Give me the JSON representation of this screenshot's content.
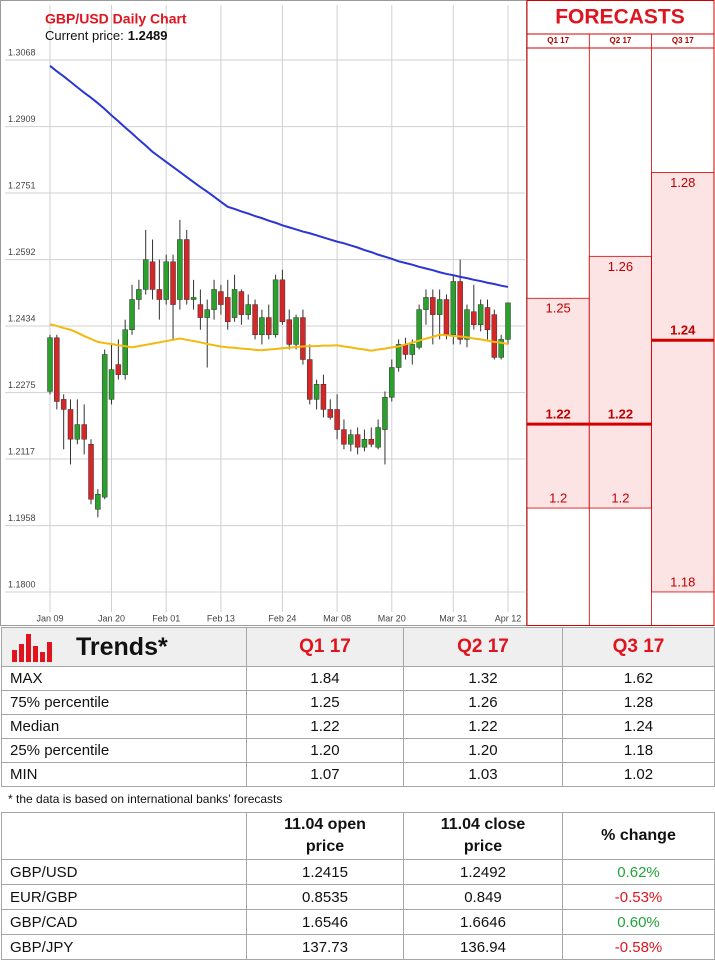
{
  "chart_data": [
    {
      "type": "candlestick",
      "title": "GBP/USD Daily Chart",
      "current_price_label": "Current price:",
      "current_price": 1.2489,
      "categories": [
        "Jan 09",
        null,
        null,
        null,
        null,
        null,
        null,
        null,
        null,
        "Jan 20",
        null,
        null,
        null,
        null,
        null,
        null,
        null,
        "Feb 01",
        null,
        null,
        null,
        null,
        null,
        null,
        null,
        "Feb 13",
        null,
        null,
        null,
        null,
        null,
        null,
        null,
        null,
        "Feb 24",
        null,
        null,
        null,
        null,
        null,
        null,
        null,
        "Mar 08",
        null,
        null,
        null,
        null,
        null,
        null,
        null,
        "Mar 20",
        null,
        null,
        null,
        null,
        null,
        null,
        null,
        null,
        "Mar 31",
        null,
        null,
        null,
        null,
        null,
        null,
        null,
        "Apr 12"
      ],
      "open": [
        1.2278,
        1.2406,
        1.2259,
        1.2235,
        1.2164,
        1.2199,
        1.2152,
        1.1997,
        1.2026,
        1.2259,
        1.2342,
        1.2318,
        1.2425,
        1.2497,
        1.2521,
        1.2587,
        1.2521,
        1.2497,
        1.2587,
        1.2497,
        1.264,
        1.2497,
        1.2485,
        1.2454,
        1.2473,
        1.2516,
        1.2502,
        1.2454,
        1.2516,
        1.2461,
        1.2485,
        1.2413,
        1.2454,
        1.2413,
        1.2544,
        1.2449,
        1.239,
        1.2454,
        1.2354,
        1.2259,
        1.2295,
        1.2235,
        1.2235,
        1.2187,
        1.2152,
        1.2175,
        1.2145,
        1.2164,
        1.2145,
        1.2187,
        1.2264,
        1.2335,
        1.239,
        1.2366,
        1.2383,
        1.2473,
        1.2502,
        1.2461,
        1.2497,
        1.2413,
        1.254,
        1.2402,
        1.2468,
        1.2437,
        1.2478,
        1.2461,
        1.2359,
        1.2402
      ],
      "high": [
        1.2413,
        1.2413,
        1.2271,
        1.2259,
        1.2259,
        1.2247,
        1.2164,
        1.2045,
        1.2378,
        1.239,
        1.2402,
        1.2449,
        1.2532,
        1.2544,
        1.2663,
        1.264,
        1.2592,
        1.2604,
        1.2604,
        1.2687,
        1.2663,
        1.2544,
        1.2521,
        1.2497,
        1.2544,
        1.2532,
        1.2544,
        1.2556,
        1.2521,
        1.2509,
        1.2497,
        1.2473,
        1.2485,
        1.2556,
        1.2568,
        1.2473,
        1.2461,
        1.2473,
        1.239,
        1.2306,
        1.2318,
        1.2259,
        1.2271,
        1.2211,
        1.2187,
        1.2192,
        1.2187,
        1.2192,
        1.2211,
        1.2278,
        1.2354,
        1.2402,
        1.2406,
        1.2402,
        1.2485,
        1.2521,
        1.2521,
        1.2521,
        1.2509,
        1.2556,
        1.2592,
        1.2485,
        1.2532,
        1.2497,
        1.2497,
        1.2473,
        1.2413,
        1.249
      ],
      "low": [
        1.2271,
        1.2235,
        1.214,
        1.2104,
        1.2152,
        1.2128,
        1.2009,
        1.1978,
        1.2021,
        1.2247,
        1.2306,
        1.2306,
        1.2413,
        1.2473,
        1.2509,
        1.2497,
        1.2449,
        1.2485,
        1.2402,
        1.2473,
        1.2485,
        1.2473,
        1.2425,
        1.2335,
        1.2449,
        1.2461,
        1.2425,
        1.2444,
        1.2437,
        1.2449,
        1.2402,
        1.239,
        1.2402,
        1.2406,
        1.2437,
        1.2378,
        1.2378,
        1.2342,
        1.2247,
        1.2235,
        1.2216,
        1.2211,
        1.2164,
        1.214,
        1.2135,
        1.2128,
        1.2135,
        1.2145,
        1.214,
        1.2104,
        1.2254,
        1.2325,
        1.2354,
        1.2342,
        1.2378,
        1.2437,
        1.239,
        1.2402,
        1.2402,
        1.239,
        1.239,
        1.2383,
        1.2425,
        1.2421,
        1.2402,
        1.2354,
        1.2354,
        1.239
      ],
      "close": [
        1.2406,
        1.2254,
        1.2235,
        1.2164,
        1.2199,
        1.2164,
        1.2021,
        1.2033,
        1.2366,
        1.233,
        1.2318,
        1.2425,
        1.2497,
        1.2521,
        1.2592,
        1.2521,
        1.2497,
        1.2587,
        1.2485,
        1.264,
        1.2497,
        1.2502,
        1.2454,
        1.2473,
        1.2521,
        1.2485,
        1.2444,
        1.2521,
        1.2461,
        1.2485,
        1.2413,
        1.2454,
        1.2413,
        1.2544,
        1.2444,
        1.239,
        1.2454,
        1.2354,
        1.2259,
        1.2295,
        1.2235,
        1.2216,
        1.2187,
        1.2152,
        1.2175,
        1.2145,
        1.2164,
        1.2152,
        1.2192,
        1.2264,
        1.2335,
        1.239,
        1.2366,
        1.239,
        1.2473,
        1.2502,
        1.2461,
        1.2497,
        1.2413,
        1.254,
        1.2402,
        1.2473,
        1.2437,
        1.2485,
        1.2425,
        1.2359,
        1.2402,
        1.2489
      ],
      "up_color": "#2ca02c",
      "down_color": "#d62728",
      "lines": [
        {
          "color": "#2a36d4",
          "values": [
            1.3054,
            1.3041,
            1.3029,
            1.3016,
            1.3003,
            1.299,
            1.2978,
            1.2965,
            1.2951,
            1.2936,
            1.2922,
            1.2907,
            1.2893,
            1.2878,
            1.2864,
            1.2849,
            1.2837,
            1.2825,
            1.2813,
            1.2801,
            1.2789,
            1.2777,
            1.2765,
            1.2754,
            1.2742,
            1.273,
            1.2718,
            1.2713,
            1.2707,
            1.2702,
            1.2696,
            1.2691,
            1.2685,
            1.268,
            1.2674,
            1.2669,
            1.2664,
            1.2659,
            1.2655,
            1.265,
            1.2645,
            1.264,
            1.2635,
            1.2631,
            1.2626,
            1.2621,
            1.2615,
            1.261,
            1.2604,
            1.2599,
            1.2594,
            1.2588,
            1.2584,
            1.258,
            1.2575,
            1.2571,
            1.2567,
            1.2562,
            1.2558,
            1.2555,
            1.2551,
            1.2548,
            1.2544,
            1.2541,
            1.2537,
            1.2534,
            1.253,
            1.2527
          ]
        },
        {
          "color": "#f2b90f",
          "values": [
            1.2438,
            1.2434,
            1.2429,
            1.2425,
            1.2418,
            1.241,
            1.2403,
            1.2396,
            1.2393,
            1.2391,
            1.2388,
            1.2386,
            1.2383,
            1.2386,
            1.2389,
            1.2392,
            1.2395,
            1.2398,
            1.2401,
            1.2404,
            1.2401,
            1.2398,
            1.2395,
            1.2391,
            1.2388,
            1.2385,
            1.2383,
            1.2382,
            1.238,
            1.2379,
            1.2377,
            1.2376,
            1.2378,
            1.2379,
            1.2381,
            1.2382,
            1.2384,
            1.2385,
            1.2386,
            1.2386,
            1.2387,
            1.2387,
            1.2388,
            1.2385,
            1.2383,
            1.238,
            1.2378,
            1.2375,
            1.2378,
            1.238,
            1.2383,
            1.2385,
            1.239,
            1.2394,
            1.2399,
            1.2404,
            1.2408,
            1.2413,
            1.2412,
            1.241,
            1.2409,
            1.2407,
            1.2404,
            1.2402,
            1.2399,
            1.2396,
            1.2394,
            1.2391
          ]
        }
      ],
      "ylim": [
        1.1757,
        1.3199
      ],
      "yticks": [
        1.3068,
        1.2909,
        1.2751,
        1.2592,
        1.2434,
        1.2275,
        1.2117,
        1.1958,
        {
          "value": 1.18,
          "label": "1.1800"
        }
      ],
      "grid": true
    },
    {
      "type": "forecast-range",
      "title": "FORECASTS",
      "categories": [
        "Q1 17",
        "Q2 17",
        "Q3 17"
      ],
      "high": [
        1.25,
        1.26,
        1.28
      ],
      "median": [
        1.22,
        1.22,
        1.24
      ],
      "low": [
        1.2,
        1.2,
        1.18
      ],
      "ylim": [
        1.1757,
        1.3199
      ],
      "color": "#fde4e4",
      "line_color": "#d40000"
    }
  ],
  "trends_table": {
    "title": "Trends*",
    "columns": [
      "Q1 17",
      "Q2 17",
      "Q3 17"
    ],
    "rows": [
      [
        "MAX",
        "1.84",
        "1.32",
        "1.62"
      ],
      [
        "75% percentile",
        "1.25",
        "1.26",
        "1.28"
      ],
      [
        "Median",
        "1.22",
        "1.22",
        "1.24"
      ],
      [
        "25% percentile",
        "1.20",
        "1.20",
        "1.18"
      ],
      [
        "MIN",
        "1.07",
        "1.03",
        "1.02"
      ]
    ]
  },
  "note": "* the data is based on international banks’ forecasts",
  "price_table": {
    "columns": [
      "11.04 open price",
      "11.04 close price",
      "% change"
    ],
    "rows": [
      [
        "GBP/USD",
        "1.2415",
        "1.2492",
        "0.62%"
      ],
      [
        "EUR/GBP",
        "0.8535",
        "0.849",
        "-0.53%"
      ],
      [
        "GBP/CAD",
        "1.6546",
        "1.6646",
        "0.60%"
      ],
      [
        "GBP/JPY",
        "137.73",
        "136.94",
        "-0.58%"
      ]
    ],
    "change_colors": [
      "#22a23a",
      "#e0141e",
      "#22a23a",
      "#e0141e"
    ]
  }
}
